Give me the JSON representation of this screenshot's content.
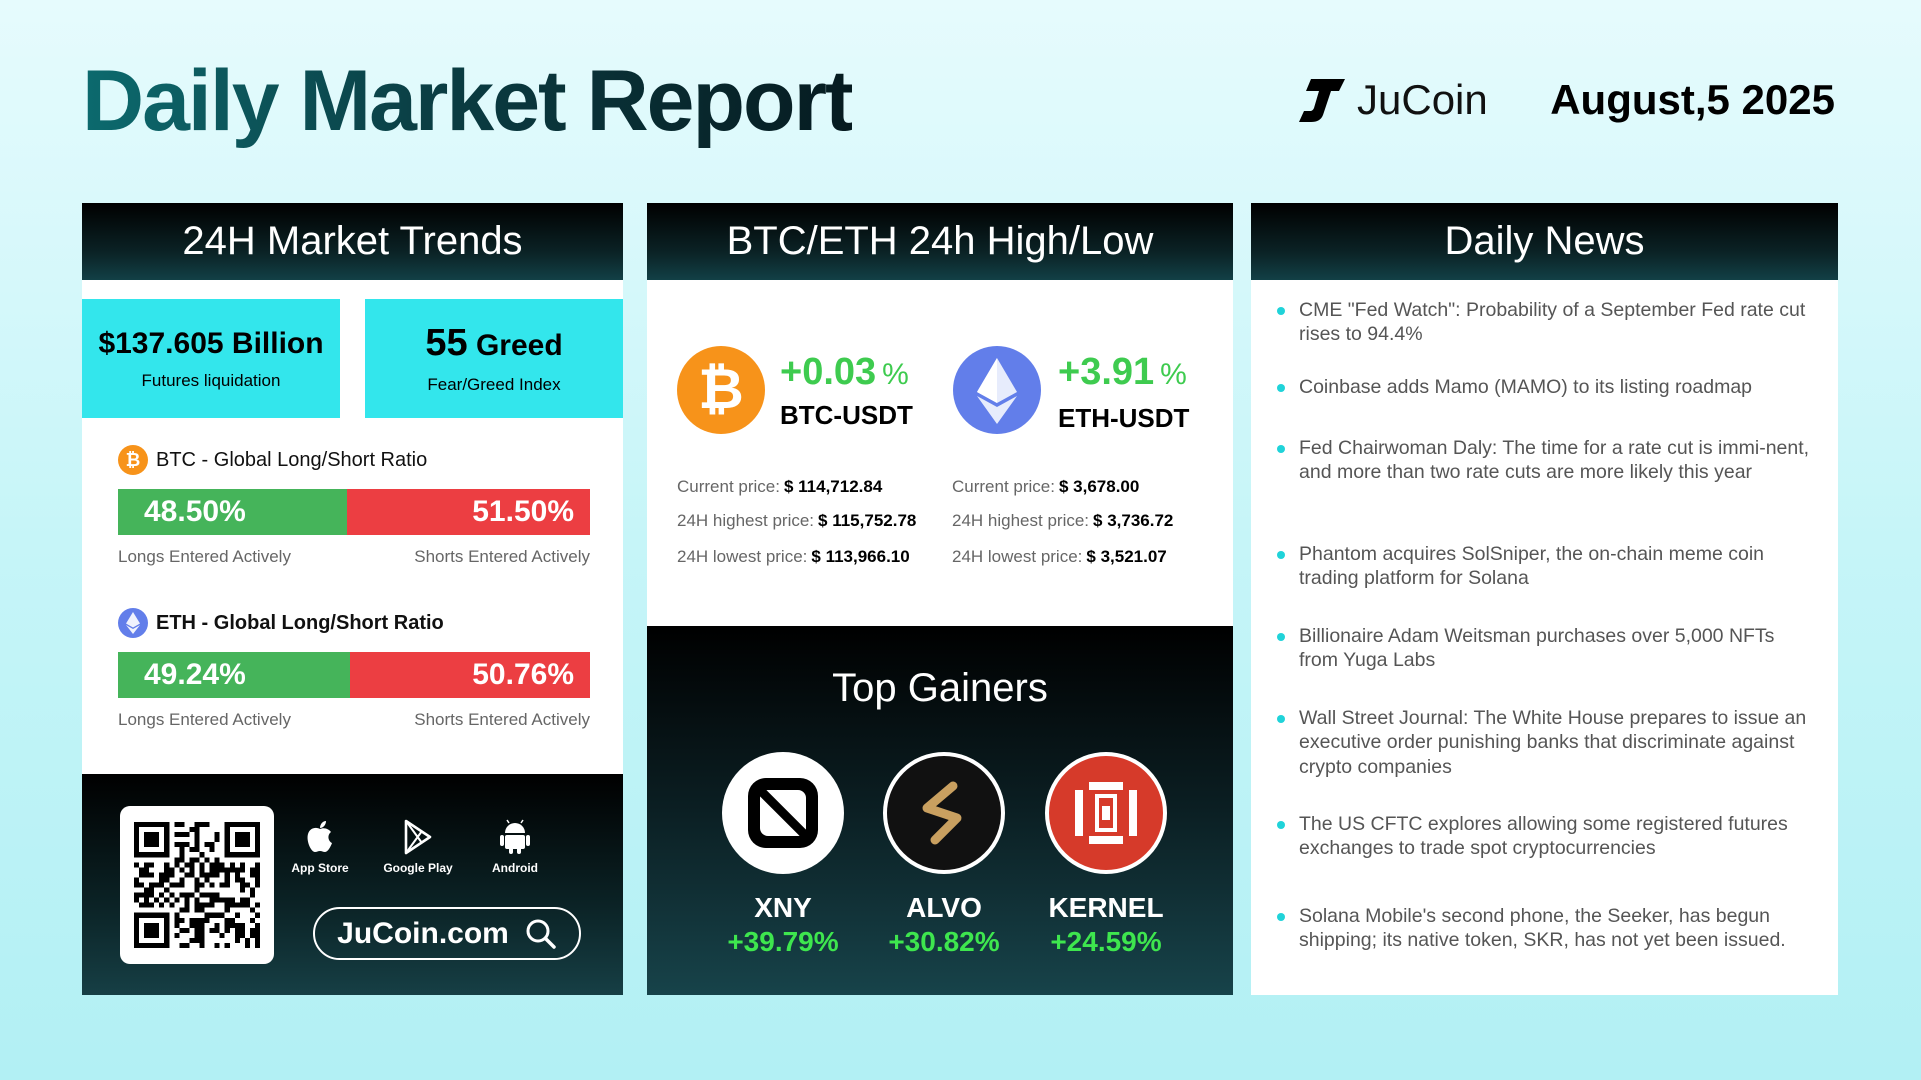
{
  "header": {
    "title": "Daily Market Report",
    "brand": "JuCoin",
    "date": "August,5 2025"
  },
  "trends": {
    "title": "24H Market Trends",
    "liquidation": {
      "value": "$137.605 Billion",
      "label": "Futures liquidation"
    },
    "fear_greed": {
      "value": "55",
      "word": "Greed",
      "label": "Fear/Greed Index"
    },
    "btc": {
      "title": "BTC - Global Long/Short Ratio",
      "long_pct": 48.5,
      "long": "48.50%",
      "short_pct": 51.5,
      "short": "51.50%",
      "long_label": "Longs Entered Actively",
      "short_label": "Shorts Entered Actively"
    },
    "eth": {
      "title": "ETH - Global Long/Short Ratio",
      "long_pct": 49.24,
      "long": "49.24%",
      "short_pct": 50.76,
      "short": "50.76%",
      "long_label": "Longs Entered Actively",
      "short_label": "Shorts Entered Actively"
    },
    "app": {
      "stores": [
        "App Store",
        "Google Play",
        "Android"
      ],
      "site": "JuCoin.com"
    }
  },
  "highlow": {
    "title": "BTC/ETH 24h High/Low",
    "btc": {
      "change": "+0.03",
      "unit": "%",
      "pair": "BTC-USDT",
      "current_label": "Current price:",
      "current": "$ 114,712.84",
      "high_label": "24H highest price:",
      "high": "$ 115,752.78",
      "low_label": "24H lowest price:",
      "low": "$ 113,966.10"
    },
    "eth": {
      "change": "+3.91",
      "unit": "%",
      "pair": "ETH-USDT",
      "current_label": "Current price:",
      "current": "$ 3,678.00",
      "high_label": "24H highest price:",
      "high": "$ 3,736.72",
      "low_label": "24H lowest price:",
      "low": "$ 3,521.07"
    }
  },
  "gainers": {
    "title": "Top Gainers",
    "items": [
      {
        "name": "XNY",
        "change": "+39.79%"
      },
      {
        "name": "ALVO",
        "change": "+30.82%"
      },
      {
        "name": "KERNEL",
        "change": "+24.59%"
      }
    ]
  },
  "news": {
    "title": "Daily News",
    "items": [
      "CME \"Fed Watch\": Probability of a September Fed rate cut rises to 94.4%",
      "Coinbase adds Mamo (MAMO) to its listing roadmap",
      "Fed Chairwoman Daly: The time for a rate cut is immi-nent, and more than two rate cuts are more likely this year",
      "Phantom acquires SolSniper, the on-chain meme coin trading platform for Solana",
      "Billionaire Adam Weitsman purchases over 5,000 NFTs from Yuga Labs",
      "Wall Street Journal: The White House prepares to issue an executive order punishing banks that discriminate against crypto companies",
      "The US CFTC explores allowing some registered futures exchanges to trade spot cryptocurrencies",
      "Solana Mobile's second phone, the Seeker, has begun shipping; its native token, SKR, has not yet been issued."
    ]
  },
  "colors": {
    "accent_cyan": "#33e6ec",
    "long_green": "#45b45a",
    "short_red": "#ec3e42",
    "gain_green": "#3ee64e",
    "btc_orange": "#f7931a",
    "eth_blue": "#627eea"
  },
  "icons": [
    "jucoin-logo-icon",
    "bitcoin-icon",
    "ethereum-icon",
    "apple-icon",
    "google-play-icon",
    "android-icon",
    "search-icon",
    "qr-code"
  ]
}
